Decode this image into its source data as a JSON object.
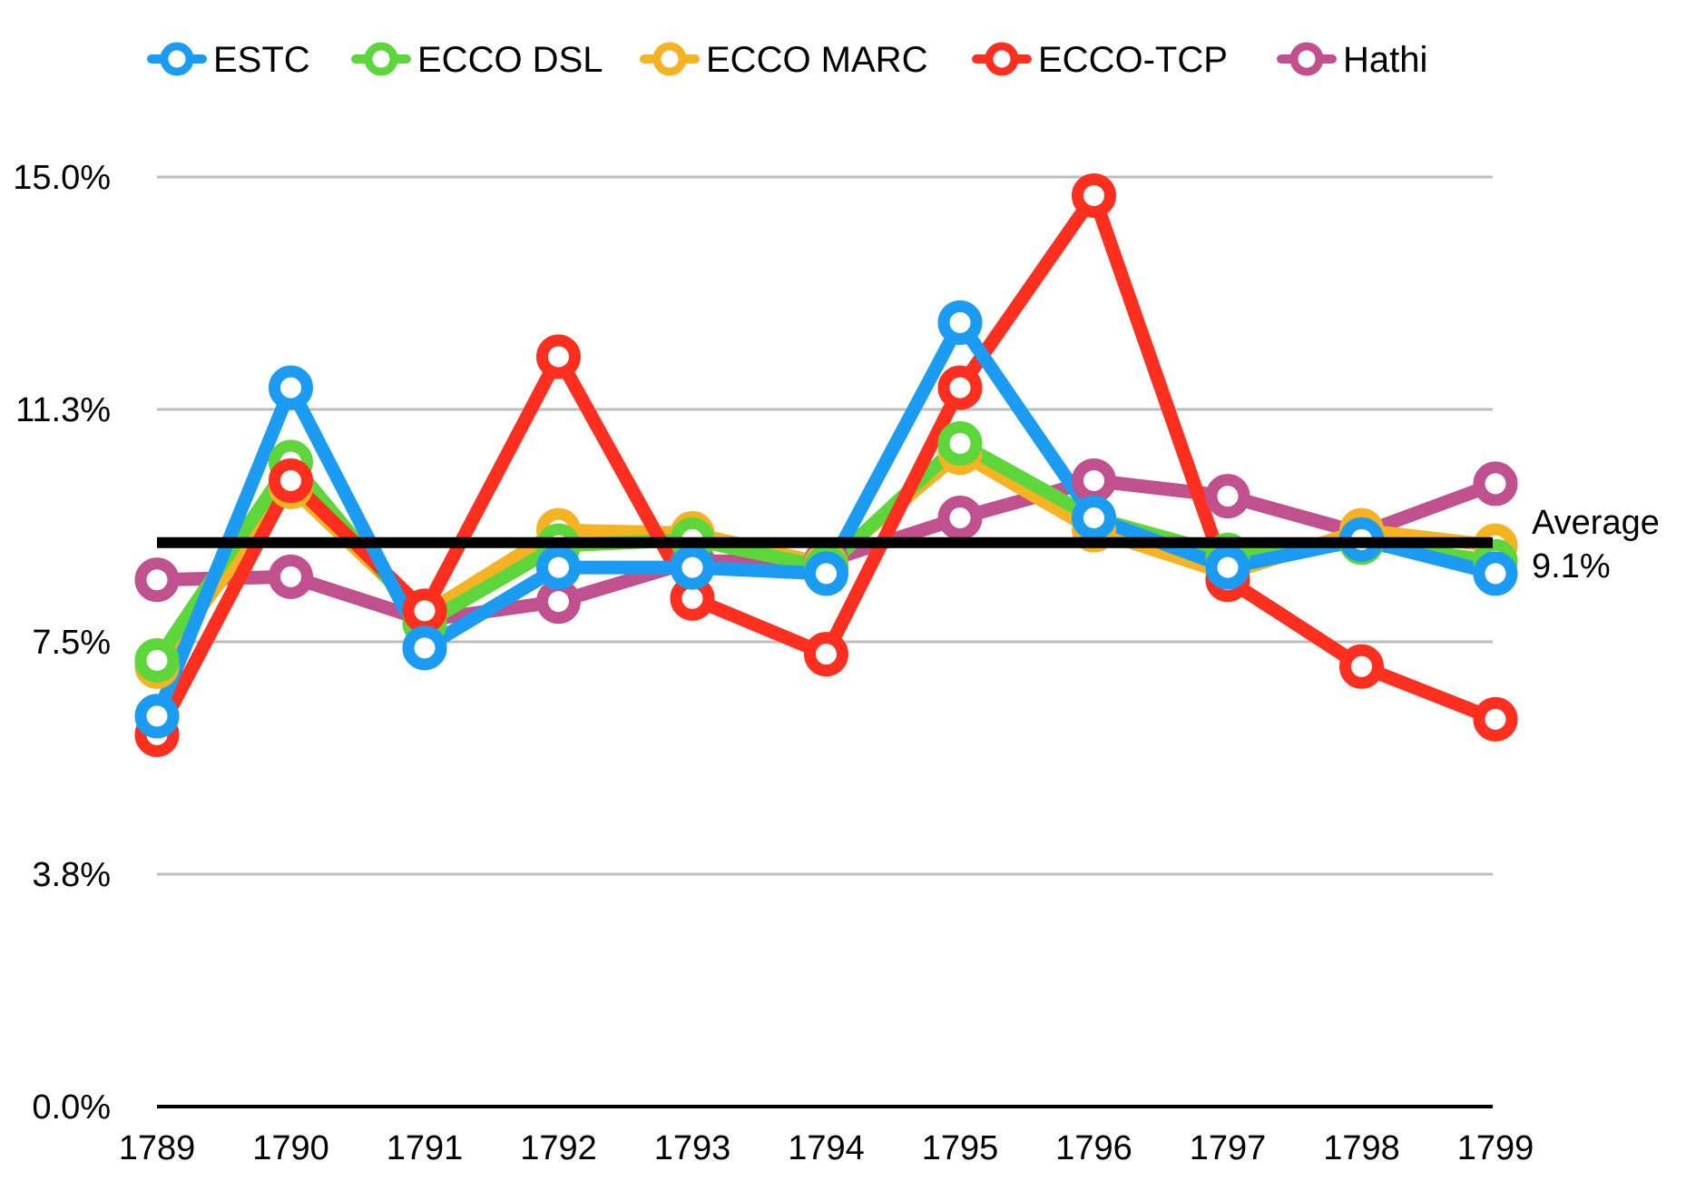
{
  "chart_data": {
    "type": "line",
    "title": "",
    "xlabel": "",
    "ylabel": "",
    "x": [
      "1789",
      "1790",
      "1791",
      "1792",
      "1793",
      "1794",
      "1795",
      "1796",
      "1797",
      "1798",
      "1799"
    ],
    "yticks": [
      "0.0%",
      "3.8%",
      "7.5%",
      "11.3%",
      "15.0%"
    ],
    "ylim": [
      0,
      15
    ],
    "grid": true,
    "legend_position": "top",
    "series": [
      {
        "name": "Hathi",
        "color": "#c0508e",
        "values": [
          8.5,
          8.55,
          7.85,
          8.15,
          8.8,
          8.8,
          9.5,
          10.1,
          9.85,
          9.25,
          10.05
        ]
      },
      {
        "name": "ECCO MARC",
        "color": "#f5b324",
        "values": [
          7.1,
          10.0,
          7.95,
          9.3,
          9.25,
          8.75,
          10.55,
          9.3,
          8.6,
          9.3,
          9.05
        ]
      },
      {
        "name": "ECCO DSL",
        "color": "#5cd63b",
        "values": [
          7.2,
          10.4,
          7.8,
          9.05,
          9.15,
          8.7,
          10.7,
          9.5,
          8.9,
          9.1,
          8.8
        ]
      },
      {
        "name": "ECCO-TCP",
        "color": "#ff2f1f",
        "values": [
          6.0,
          10.1,
          8.0,
          12.1,
          8.2,
          7.3,
          11.6,
          14.7,
          8.5,
          7.1,
          6.25
        ]
      },
      {
        "name": "ESTC",
        "color": "#1b9cf2",
        "values": [
          6.3,
          11.6,
          7.4,
          8.7,
          8.7,
          8.6,
          12.65,
          9.5,
          8.7,
          9.15,
          8.6
        ]
      }
    ],
    "legend_order": [
      "ESTC",
      "ECCO DSL",
      "ECCO MARC",
      "ECCO-TCP",
      "Hathi"
    ],
    "average": {
      "value": 9.1,
      "label_line1": "Average",
      "label_line2": "9.1%"
    }
  }
}
